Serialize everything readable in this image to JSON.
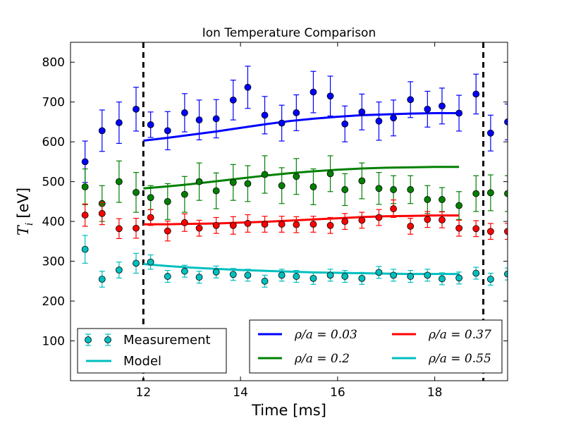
{
  "chart_data": {
    "type": "scatter",
    "title": "Ion Temperature Comparison",
    "xlabel": "Time [ms]",
    "ylabel_symbol": "T",
    "ylabel_subscript": "i",
    "ylabel_unit": "[eV]",
    "xlim": [
      10.5,
      19.5
    ],
    "ylim": [
      0,
      850
    ],
    "xticks": [
      12,
      14,
      16,
      18
    ],
    "yticks": [
      100,
      200,
      300,
      400,
      500,
      600,
      700,
      800
    ],
    "grid": false,
    "vlines": [
      12,
      19
    ],
    "x": [
      10.8,
      11.15,
      11.5,
      11.85,
      12.15,
      12.5,
      12.85,
      13.15,
      13.5,
      13.85,
      14.15,
      14.5,
      14.85,
      15.15,
      15.5,
      15.85,
      16.15,
      16.5,
      16.85,
      17.15,
      17.5,
      17.85,
      18.15,
      18.5,
      18.85,
      19.15,
      19.5
    ],
    "series": [
      {
        "name": "ρ/a = 0.03",
        "color": "#0000ff",
        "y": [
          550,
          628,
          648,
          682,
          643,
          628,
          673,
          655,
          658,
          705,
          737,
          667,
          647,
          673,
          725,
          715,
          645,
          675,
          652,
          660,
          706,
          682,
          690,
          672,
          720,
          622,
          650
        ],
        "yerr": [
          52,
          52,
          52,
          55,
          32,
          48,
          48,
          50,
          48,
          50,
          53,
          47,
          45,
          45,
          52,
          50,
          45,
          45,
          48,
          45,
          45,
          45,
          45,
          45,
          50,
          45,
          45
        ],
        "model_x": [
          12,
          12.5,
          13,
          13.5,
          14,
          14.5,
          15,
          15.5,
          16,
          16.5,
          17,
          17.5,
          18,
          18.5
        ],
        "model_y": [
          603,
          610,
          618,
          626,
          635,
          644,
          652,
          658,
          663,
          667,
          669,
          671,
          672,
          672
        ]
      },
      {
        "name": "ρ/a = 0.2",
        "color": "#008000",
        "y": [
          487,
          445,
          500,
          473,
          460,
          450,
          468,
          500,
          477,
          498,
          495,
          518,
          490,
          513,
          487,
          520,
          480,
          502,
          483,
          480,
          480,
          455,
          455,
          440,
          470,
          472,
          470
        ],
        "yerr": [
          45,
          45,
          52,
          50,
          30,
          45,
          45,
          47,
          45,
          45,
          45,
          47,
          45,
          45,
          45,
          45,
          40,
          45,
          40,
          35,
          35,
          35,
          30,
          35,
          45,
          45,
          45
        ],
        "model_x": [
          12,
          12.5,
          13,
          13.5,
          14,
          14.5,
          15,
          15.5,
          16,
          16.5,
          17,
          17.5,
          18,
          18.5
        ],
        "model_y": [
          483,
          488,
          494,
          501,
          508,
          515,
          521,
          526,
          530,
          533,
          535,
          536,
          537,
          537
        ]
      },
      {
        "name": "ρ/a = 0.37",
        "color": "#ff0000",
        "y": [
          416,
          420,
          382,
          383,
          410,
          376,
          397,
          383,
          390,
          390,
          395,
          393,
          393,
          392,
          393,
          390,
          400,
          403,
          410,
          432,
          388,
          405,
          404,
          383,
          382,
          375,
          375
        ],
        "yerr": [
          28,
          28,
          25,
          25,
          20,
          25,
          22,
          20,
          20,
          22,
          22,
          20,
          20,
          20,
          20,
          20,
          20,
          20,
          20,
          22,
          20,
          20,
          20,
          20,
          20,
          20,
          20
        ],
        "model_x": [
          12,
          12.5,
          13,
          13.5,
          14,
          14.5,
          15,
          15.5,
          16,
          16.5,
          17,
          17.5,
          18,
          18.5
        ],
        "model_y": [
          393,
          393,
          394,
          395,
          397,
          399,
          402,
          405,
          408,
          411,
          413,
          414,
          415,
          415
        ]
      },
      {
        "name": "ρ/a = 0.55",
        "color": "#00bfbf",
        "y": [
          330,
          255,
          278,
          295,
          298,
          262,
          275,
          260,
          273,
          267,
          265,
          250,
          265,
          262,
          257,
          265,
          262,
          257,
          272,
          265,
          262,
          265,
          256,
          258,
          270,
          255,
          268
        ],
        "yerr": [
          35,
          20,
          20,
          25,
          18,
          15,
          15,
          15,
          15,
          15,
          15,
          15,
          15,
          15,
          15,
          15,
          15,
          15,
          15,
          15,
          15,
          15,
          15,
          15,
          15,
          15,
          15
        ],
        "model_x": [
          12,
          12.5,
          13,
          13.5,
          14,
          14.5,
          15,
          15.5,
          16,
          16.5,
          17,
          17.5,
          18,
          18.5
        ],
        "model_y": [
          293,
          288,
          284,
          281,
          278,
          276,
          274,
          272,
          271,
          270,
          269,
          268,
          268,
          268
        ]
      }
    ],
    "legend_types": {
      "location": "lower-left",
      "entries": [
        "Measurement",
        "Model"
      ]
    },
    "legend_series": {
      "location": "lower-right",
      "columns": 2
    }
  }
}
